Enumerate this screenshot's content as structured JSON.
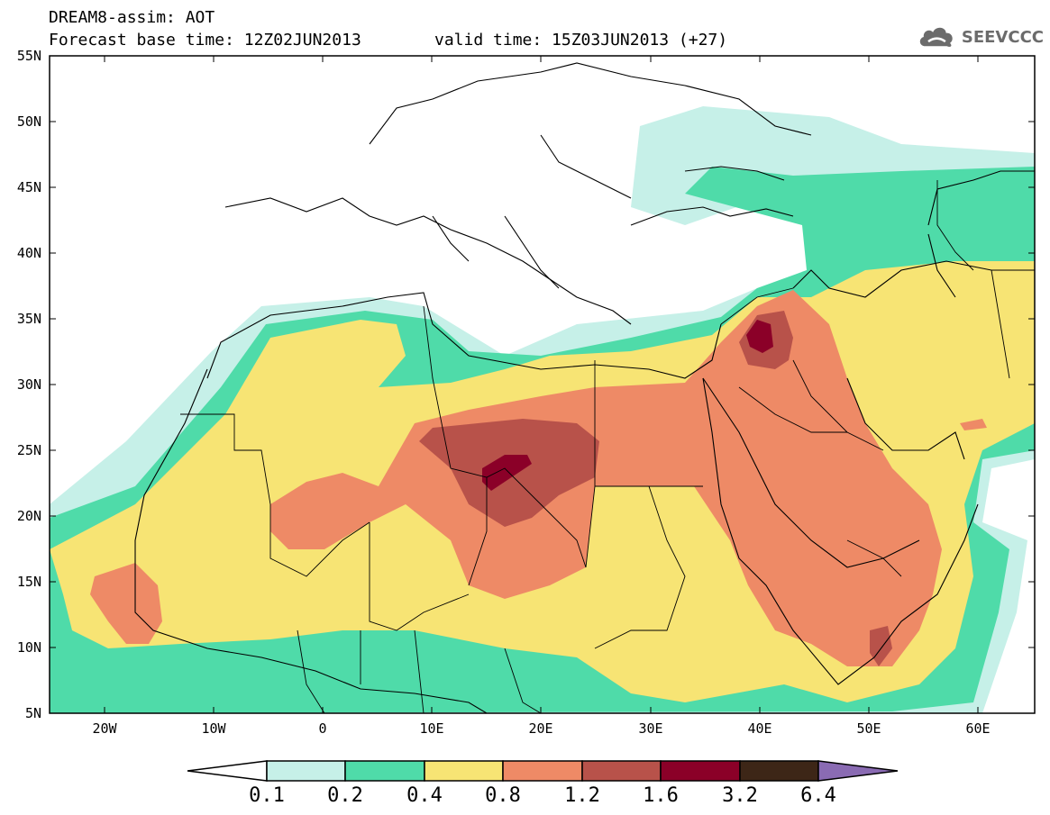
{
  "title": {
    "line1": "DREAM8-assim: AOT",
    "line2": "Forecast base time: 12Z02JUN2013",
    "valid": "valid time: 15Z03JUN2013 (+27)"
  },
  "logo": {
    "text": "SEEVCCC",
    "icon": "cloud-icon"
  },
  "map": {
    "variable": "AOT",
    "lon_range": [
      -25,
      65
    ],
    "lat_range": [
      5,
      55
    ],
    "lat_labels": [
      "55N",
      "50N",
      "45N",
      "40N",
      "35N",
      "30N",
      "25N",
      "20N",
      "15N",
      "10N",
      "5N"
    ],
    "lon_labels": [
      "20W",
      "10W",
      "0",
      "10E",
      "20E",
      "30E",
      "40E",
      "50E",
      "60E"
    ]
  },
  "colorbar": {
    "labels": [
      "0.1",
      "0.2",
      "0.4",
      "0.8",
      "1.2",
      "1.6",
      "3.2",
      "6.4"
    ],
    "colors": [
      "#ffffff",
      "#c6f0e8",
      "#4fdba9",
      "#f7e474",
      "#ee8a66",
      "#b8524a",
      "#8b0028",
      "#3d2617",
      "#8a6bb3"
    ]
  }
}
